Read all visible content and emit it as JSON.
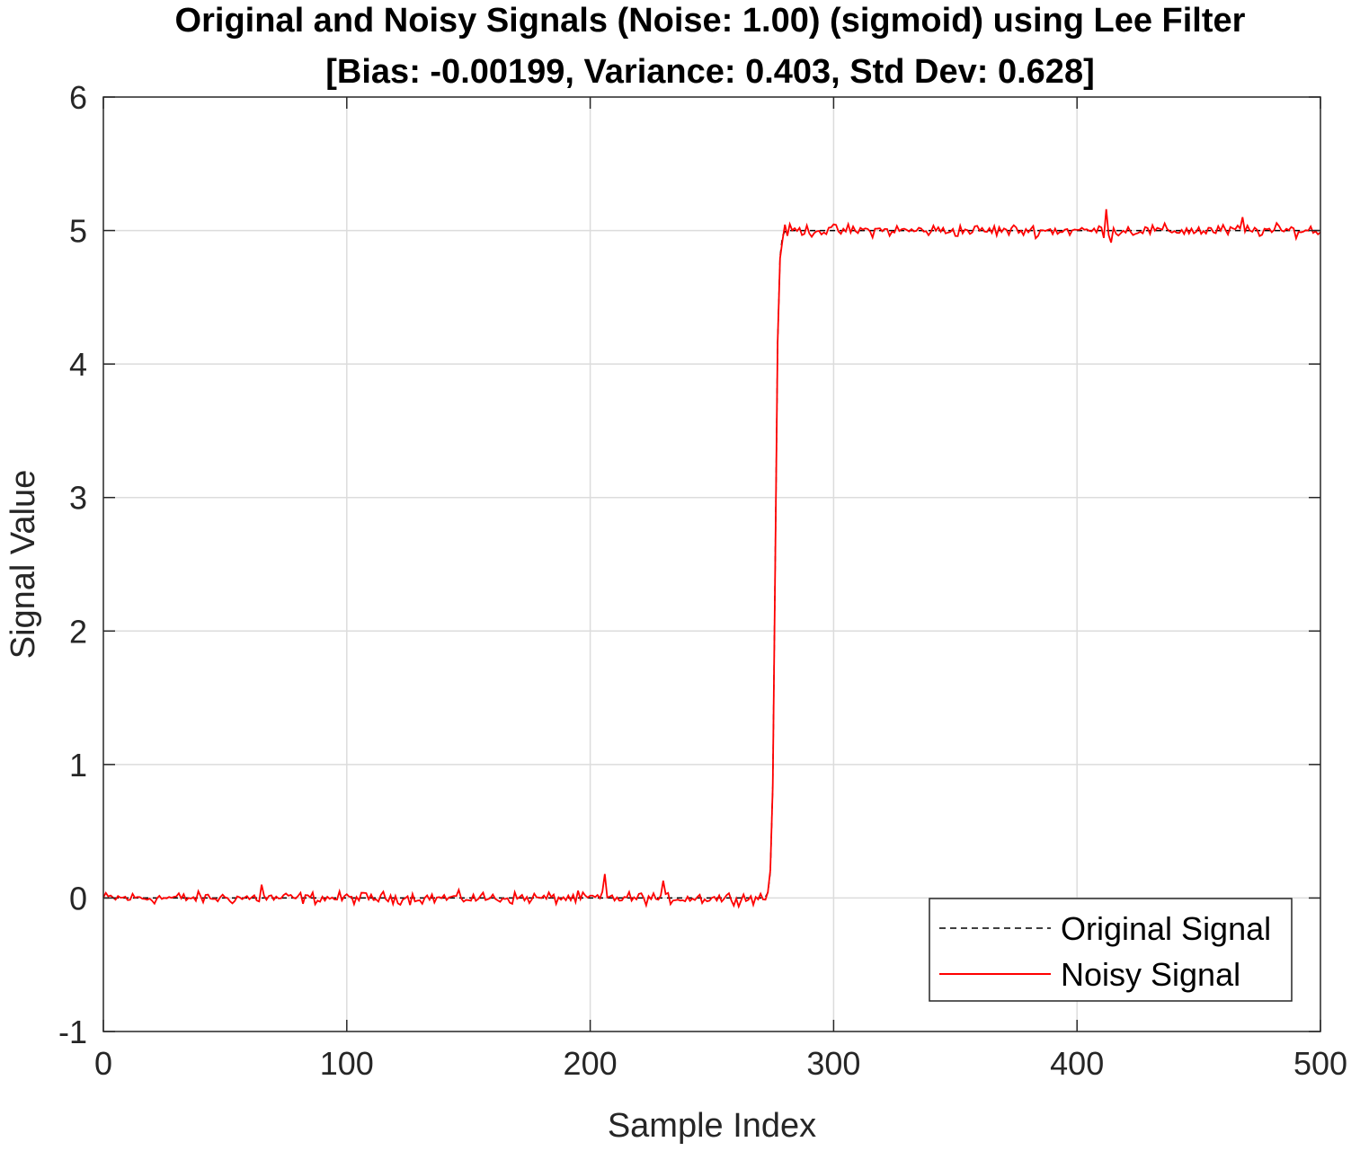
{
  "chart_data": {
    "type": "line",
    "title_line1": "Original and Noisy Signals (Noise: 1.00) (sigmoid) using Lee Filter",
    "title_line2": "[Bias: -0.00199, Variance: 0.403, Std Dev: 0.628]",
    "xlabel": "Sample Index",
    "ylabel": "Signal Value",
    "xlim": [
      0,
      500
    ],
    "ylim": [
      -1,
      6
    ],
    "xticks": [
      0,
      100,
      200,
      300,
      400,
      500
    ],
    "yticks": [
      -1,
      0,
      1,
      2,
      3,
      4,
      5,
      6
    ],
    "grid": true,
    "legend_location": "bottom-right",
    "sigmoid_center": 276,
    "sigmoid_amplitude": 5,
    "series": [
      {
        "name": "Original Signal",
        "color": "#000000",
        "style": "dashed",
        "description_points": [
          [
            0,
            0
          ],
          [
            270,
            0
          ],
          [
            273,
            0.05
          ],
          [
            274,
            0.2
          ],
          [
            275,
            1.0
          ],
          [
            276,
            2.5
          ],
          [
            277,
            4.0
          ],
          [
            278,
            4.8
          ],
          [
            279,
            4.95
          ],
          [
            282,
            5.0
          ],
          [
            500,
            5.0
          ]
        ]
      },
      {
        "name": "Noisy Signal",
        "color": "#ff0000",
        "style": "solid",
        "noise_amplitude": 0.035,
        "peaks": [
          [
            65,
            0.1
          ],
          [
            206,
            0.18
          ],
          [
            230,
            0.13
          ],
          [
            412,
            5.16
          ],
          [
            414,
            4.91
          ],
          [
            468,
            5.1
          ]
        ]
      }
    ]
  },
  "legend": {
    "original": "Original Signal",
    "noisy": "Noisy Signal"
  }
}
